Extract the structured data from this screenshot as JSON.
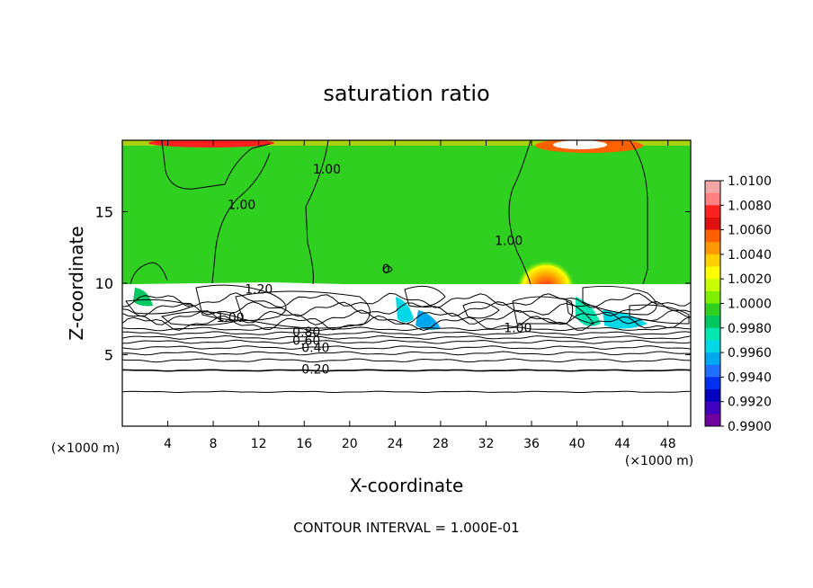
{
  "chart_data": {
    "type": "heatmap",
    "title": "saturation ratio",
    "xlabel": "X-coordinate",
    "ylabel": "Z-coordinate",
    "x_unit": "(×1000 m)",
    "z_unit": "(×1000 m)",
    "xlim": [
      0,
      50
    ],
    "ylim": [
      0,
      20
    ],
    "x_ticks": [
      4,
      8,
      12,
      16,
      20,
      24,
      28,
      32,
      36,
      40,
      44,
      48
    ],
    "y_ticks": [
      5,
      10,
      15
    ],
    "footer": "CONTOUR INTERVAL = 1.000E-01",
    "colorbar": {
      "levels": [
        "1.0100",
        "1.0080",
        "1.0060",
        "1.0040",
        "1.0020",
        "1.0000",
        "0.9980",
        "0.9960",
        "0.9940",
        "0.9920",
        "0.9900"
      ],
      "colors": [
        "#f4a5a5",
        "#ff8080",
        "#ff2020",
        "#e01010",
        "#ff6000",
        "#ff9800",
        "#ffd000",
        "#ffff00",
        "#c8ff00",
        "#7fef00",
        "#2fd020",
        "#00c860",
        "#00e8b0",
        "#00d8e8",
        "#00a8f0",
        "#2070ff",
        "#0030f0",
        "#0000c0",
        "#4000c0",
        "#7000a0"
      ],
      "colors_order": "top-to-bottom"
    },
    "contour_labels": [
      {
        "text": "1.00",
        "x": 18.0,
        "z": 18.0
      },
      {
        "text": "1.00",
        "x": 10.5,
        "z": 15.5
      },
      {
        "text": "1.00",
        "x": 34.0,
        "z": 13.0
      },
      {
        "text": "0",
        "x": 23.2,
        "z": 11.0
      },
      {
        "text": "1.20",
        "x": 12.0,
        "z": 9.6
      },
      {
        "text": "1.00",
        "x": 9.5,
        "z": 7.6
      },
      {
        "text": "0.80",
        "x": 16.2,
        "z": 6.6
      },
      {
        "text": "0.60",
        "x": 16.2,
        "z": 6.0
      },
      {
        "text": "0.40",
        "x": 17.0,
        "z": 5.5
      },
      {
        "text": "0.20",
        "x": 17.0,
        "z": 4.0
      },
      {
        "text": "1.00",
        "x": 34.8,
        "z": 6.9
      }
    ]
  }
}
